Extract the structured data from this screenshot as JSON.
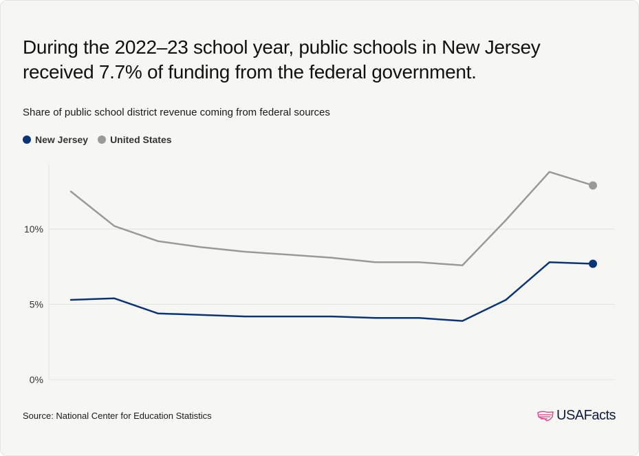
{
  "title": "During the 2022–23 school year, public schools in New Jersey received 7.7% of funding from the federal government.",
  "subtitle": "Share of public school district revenue coming from federal sources",
  "source": "Source: National Center for Education Statistics",
  "logo_text": "USAFacts",
  "colors": {
    "new_jersey": "#0a3478",
    "united_states": "#999999",
    "grid": "#e2e2de",
    "logo_accent": "#e0418a"
  },
  "chart_data": {
    "type": "line",
    "title": "During the 2022–23 school year, public schools in New Jersey received 7.7% of funding from the federal government.",
    "subtitle": "Share of public school district revenue coming from federal sources",
    "xlabel": "",
    "ylabel": "",
    "x": [
      0,
      1,
      2,
      3,
      4,
      5,
      6,
      7,
      8,
      9,
      10,
      11,
      12
    ],
    "ylim": [
      0,
      14.3
    ],
    "yticks": [
      0,
      5,
      10
    ],
    "ytick_labels": [
      "0%",
      "5%",
      "10%"
    ],
    "grid": true,
    "legend_position": "top-left",
    "series": [
      {
        "name": "New Jersey",
        "color": "#0a3478",
        "values": [
          5.3,
          5.4,
          4.4,
          4.3,
          4.2,
          4.2,
          4.2,
          4.1,
          4.1,
          3.9,
          5.3,
          7.8,
          7.7
        ]
      },
      {
        "name": "United States",
        "color": "#999999",
        "values": [
          12.5,
          10.2,
          9.2,
          8.8,
          8.5,
          8.3,
          8.1,
          7.8,
          7.8,
          7.6,
          10.6,
          13.8,
          12.9
        ]
      }
    ]
  }
}
